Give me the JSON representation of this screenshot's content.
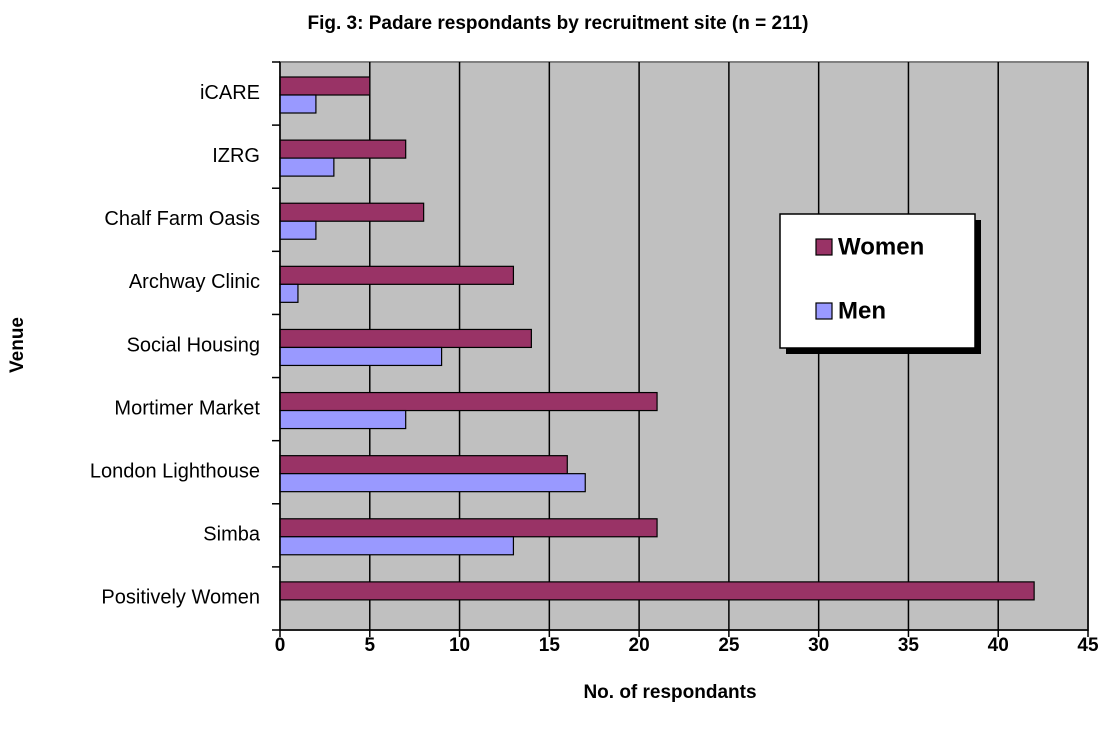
{
  "chart_data": {
    "type": "bar",
    "orientation": "horizontal",
    "title": "Fig. 3: Padare respondants by recruitment site (n = 211)",
    "x_label": "No. of respondants",
    "y_label": "Venue",
    "categories": [
      "iCARE",
      "IZRG",
      "Chalf Farm Oasis",
      "Archway Clinic",
      "Social Housing",
      "Mortimer Market",
      "London Lighthouse",
      "Simba",
      "Positively Women"
    ],
    "series": [
      {
        "name": "Women",
        "color": "#993366",
        "values": [
          5,
          7,
          8,
          13,
          14,
          21,
          16,
          21,
          42
        ]
      },
      {
        "name": "Men",
        "color": "#9999ff",
        "values": [
          2,
          3,
          2,
          1,
          9,
          7,
          17,
          13,
          0
        ]
      }
    ],
    "xlim": [
      0,
      45
    ],
    "xticks": [
      0,
      5,
      10,
      15,
      20,
      25,
      30,
      35,
      40,
      45
    ],
    "grid": true,
    "legend_position": "right"
  }
}
